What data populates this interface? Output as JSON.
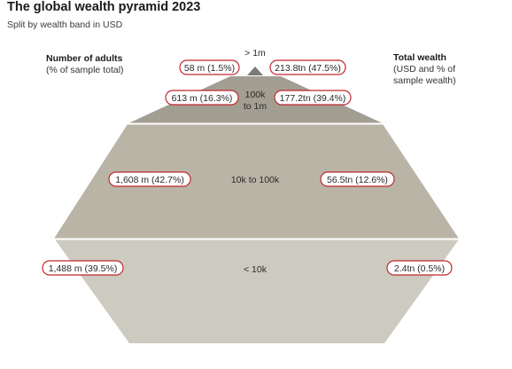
{
  "header": {
    "title": "The global wealth pyramid 2023",
    "subtitle": "Split by wealth band in USD"
  },
  "left_heading": {
    "title": "Number of adults",
    "subtitle": "(% of sample total)"
  },
  "right_heading": {
    "title": "Total wealth",
    "subtitle_line1": "(USD and % of",
    "subtitle_line2": "sample wealth)"
  },
  "chart_data": {
    "type": "pyramid",
    "title": "The global wealth pyramid 2023",
    "subtitle": "Split by wealth band in USD",
    "colors": {
      "top": "#7b7b74",
      "upper_mid": "#a39e92",
      "lower_mid": "#b9b4a6",
      "base": "#cdcac0",
      "pill_border": "#c0282d"
    },
    "bands": [
      {
        "label": "> 1m",
        "adults_label": "58 m (1.5%)",
        "adults_millions": 58,
        "adults_pct": 1.5,
        "wealth_label": "213.8tn (47.5%)",
        "wealth_tn": 213.8,
        "wealth_pct": 47.5
      },
      {
        "label": "100k to 1m",
        "label_line1": "100k",
        "label_line2": "to 1m",
        "adults_label": "613 m (16.3%)",
        "adults_millions": 613,
        "adults_pct": 16.3,
        "wealth_label": "177.2tn (39.4%)",
        "wealth_tn": 177.2,
        "wealth_pct": 39.4
      },
      {
        "label": "10k to 100k",
        "adults_label": "1,608 m (42.7%)",
        "adults_millions": 1608,
        "adults_pct": 42.7,
        "wealth_label": "56.5tn (12.6%)",
        "wealth_tn": 56.5,
        "wealth_pct": 12.6
      },
      {
        "label": "< 10k",
        "adults_label": "1,488 m (39.5%)",
        "adults_millions": 1488,
        "adults_pct": 39.5,
        "wealth_label": "2.4tn (0.5%)",
        "wealth_tn": 2.4,
        "wealth_pct": 0.5
      }
    ]
  }
}
